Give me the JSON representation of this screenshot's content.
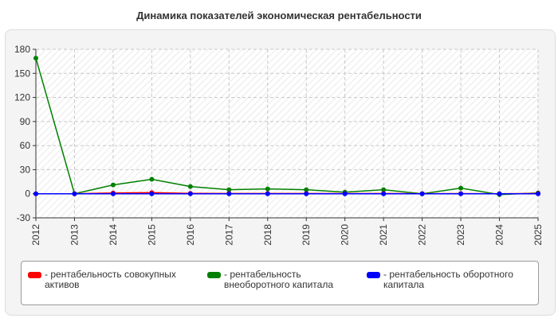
{
  "chart_data": {
    "type": "line",
    "title": "Динамика показателей экономическая рентабельности",
    "xlabel": "",
    "ylabel": "",
    "x": [
      "2012",
      "2013",
      "2014",
      "2015",
      "2016",
      "2017",
      "2018",
      "2019",
      "2020",
      "2021",
      "2022",
      "2023",
      "2024",
      "2025"
    ],
    "yticks": [
      "180",
      "150",
      "120",
      "90",
      "60",
      "30",
      "0",
      "-30"
    ],
    "ylim": [
      -30,
      180
    ],
    "grid": true,
    "legend": "bottom",
    "series": [
      {
        "name": "рентабельность совокупных активов",
        "color": "#ff0000",
        "values": [
          0,
          0,
          1,
          1.5,
          0.5,
          0.3,
          0.3,
          0.3,
          0.2,
          0.3,
          0.1,
          0.2,
          0,
          0.3
        ]
      },
      {
        "name": "рентабельность внеоборотного капитала",
        "color": "#008000",
        "values": [
          169,
          0,
          11,
          18,
          9,
          5,
          6,
          5,
          2,
          5,
          0,
          7,
          -1,
          1
        ]
      },
      {
        "name": "рентабельность оборотного капитала",
        "color": "#0000ff",
        "values": [
          0,
          0,
          0,
          0,
          0,
          0,
          0,
          0,
          0,
          0,
          0,
          0,
          0,
          0
        ]
      }
    ]
  }
}
